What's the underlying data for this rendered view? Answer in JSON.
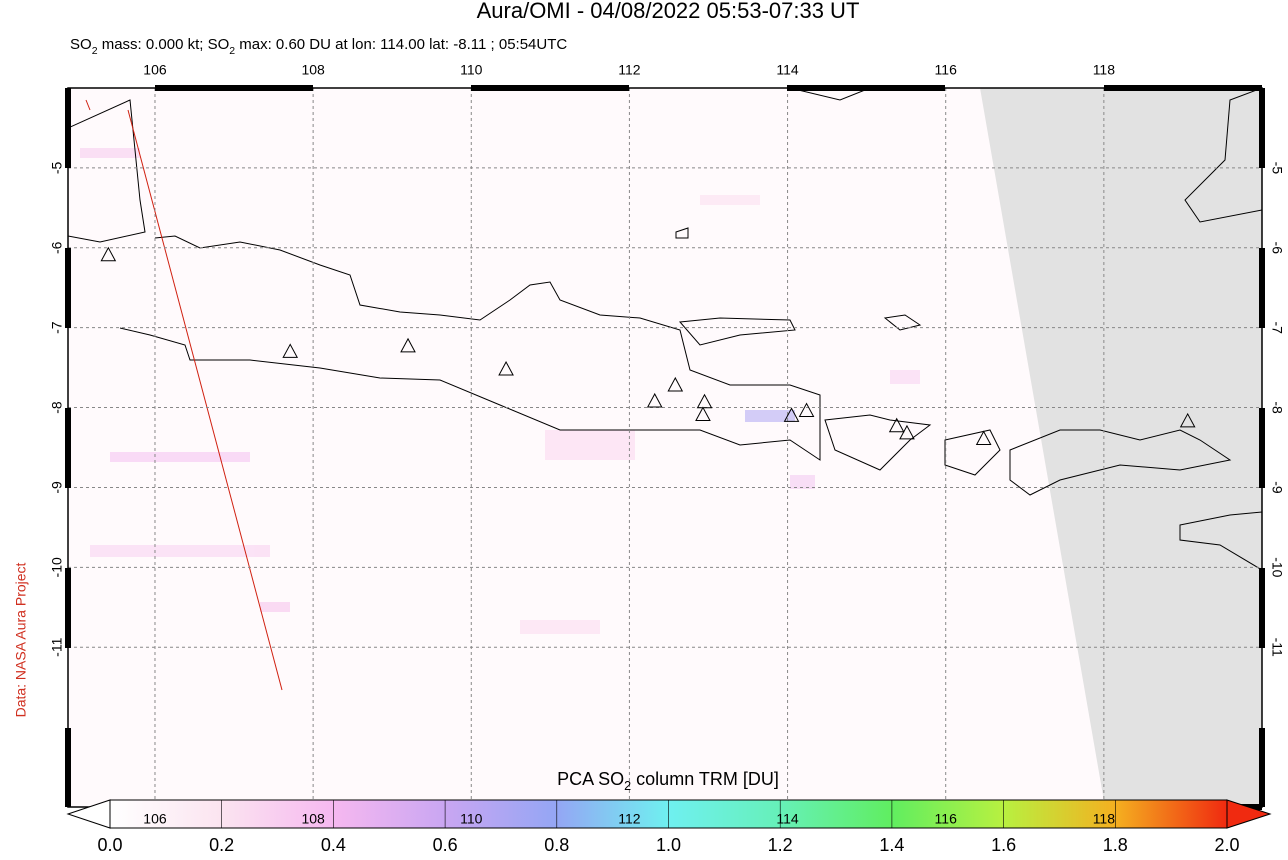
{
  "chart_data": {
    "type": "map",
    "title": "Aura/OMI - 04/08/2022 05:53-07:33 UT",
    "subtitle": [
      "SO",
      "2",
      " mass: 0.000 kt; SO",
      "2",
      " max: 0.60 DU at lon: 114.00 lat: -8.11 ; 05:54UTC"
    ],
    "side_note": "Data: NASA Aura Project",
    "xlim": [
      104.9,
      120.0
    ],
    "ylim": [
      -13.0,
      -4.0
    ],
    "xticks": [
      106,
      108,
      110,
      112,
      114,
      116,
      118
    ],
    "yticks": [
      -5,
      -6,
      -7,
      -8,
      -9,
      -10,
      -11
    ],
    "grid": true,
    "volcanoes": {
      "lon": [
        105.41,
        107.71,
        109.2,
        110.44,
        112.32,
        112.58,
        112.95,
        112.93,
        114.05,
        114.24,
        115.38,
        115.51,
        116.48,
        119.06
      ],
      "lat": [
        -6.1,
        -7.31,
        -7.24,
        -7.53,
        -7.93,
        -7.73,
        -7.94,
        -8.1,
        -8.11,
        -8.05,
        -8.24,
        -8.33,
        -8.4,
        -8.18
      ]
    },
    "colorbar": {
      "label": [
        "PCA SO",
        "2",
        " column TRM [DU]"
      ],
      "lim": [
        0.0,
        2.0
      ],
      "ticks": [
        {
          "value": 0.0,
          "label": "0.0"
        },
        {
          "value": 0.2,
          "label": "0.2"
        },
        {
          "value": 0.4,
          "label": "0.4"
        },
        {
          "value": 0.6,
          "label": "0.6"
        },
        {
          "value": 0.8,
          "label": "0.8"
        },
        {
          "value": 1.0,
          "label": "1.0"
        },
        {
          "value": 1.2,
          "label": "1.2"
        },
        {
          "value": 1.4,
          "label": "1.4"
        },
        {
          "value": 1.6,
          "label": "1.6"
        },
        {
          "value": 1.8,
          "label": "1.8"
        },
        {
          "value": 2.0,
          "label": "2.0"
        }
      ]
    }
  }
}
